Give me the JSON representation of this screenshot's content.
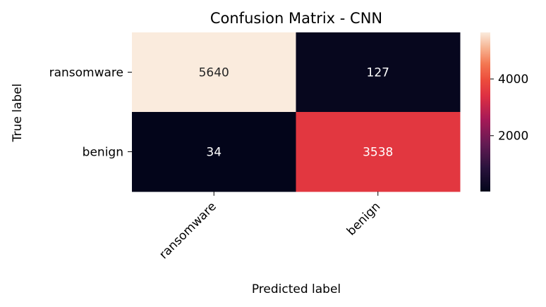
{
  "chart_data": {
    "type": "heatmap",
    "title": "Confusion Matrix - CNN",
    "xlabel": "Predicted label",
    "ylabel": "True label",
    "x_categories": [
      "ransomware",
      "benign"
    ],
    "y_categories": [
      "ransomware",
      "benign"
    ],
    "values": [
      [
        5640,
        127
      ],
      [
        34,
        3538
      ]
    ],
    "cell_labels": [
      [
        "5640",
        "127"
      ],
      [
        "34",
        "3538"
      ]
    ],
    "colorbar": {
      "min": 34,
      "max": 5640,
      "ticks": [
        2000,
        4000
      ],
      "tick_labels": [
        "2000",
        "4000"
      ],
      "colormap": "rocket"
    },
    "colors": {
      "text_light": "#ffffff",
      "text_dark": "#262626"
    }
  }
}
